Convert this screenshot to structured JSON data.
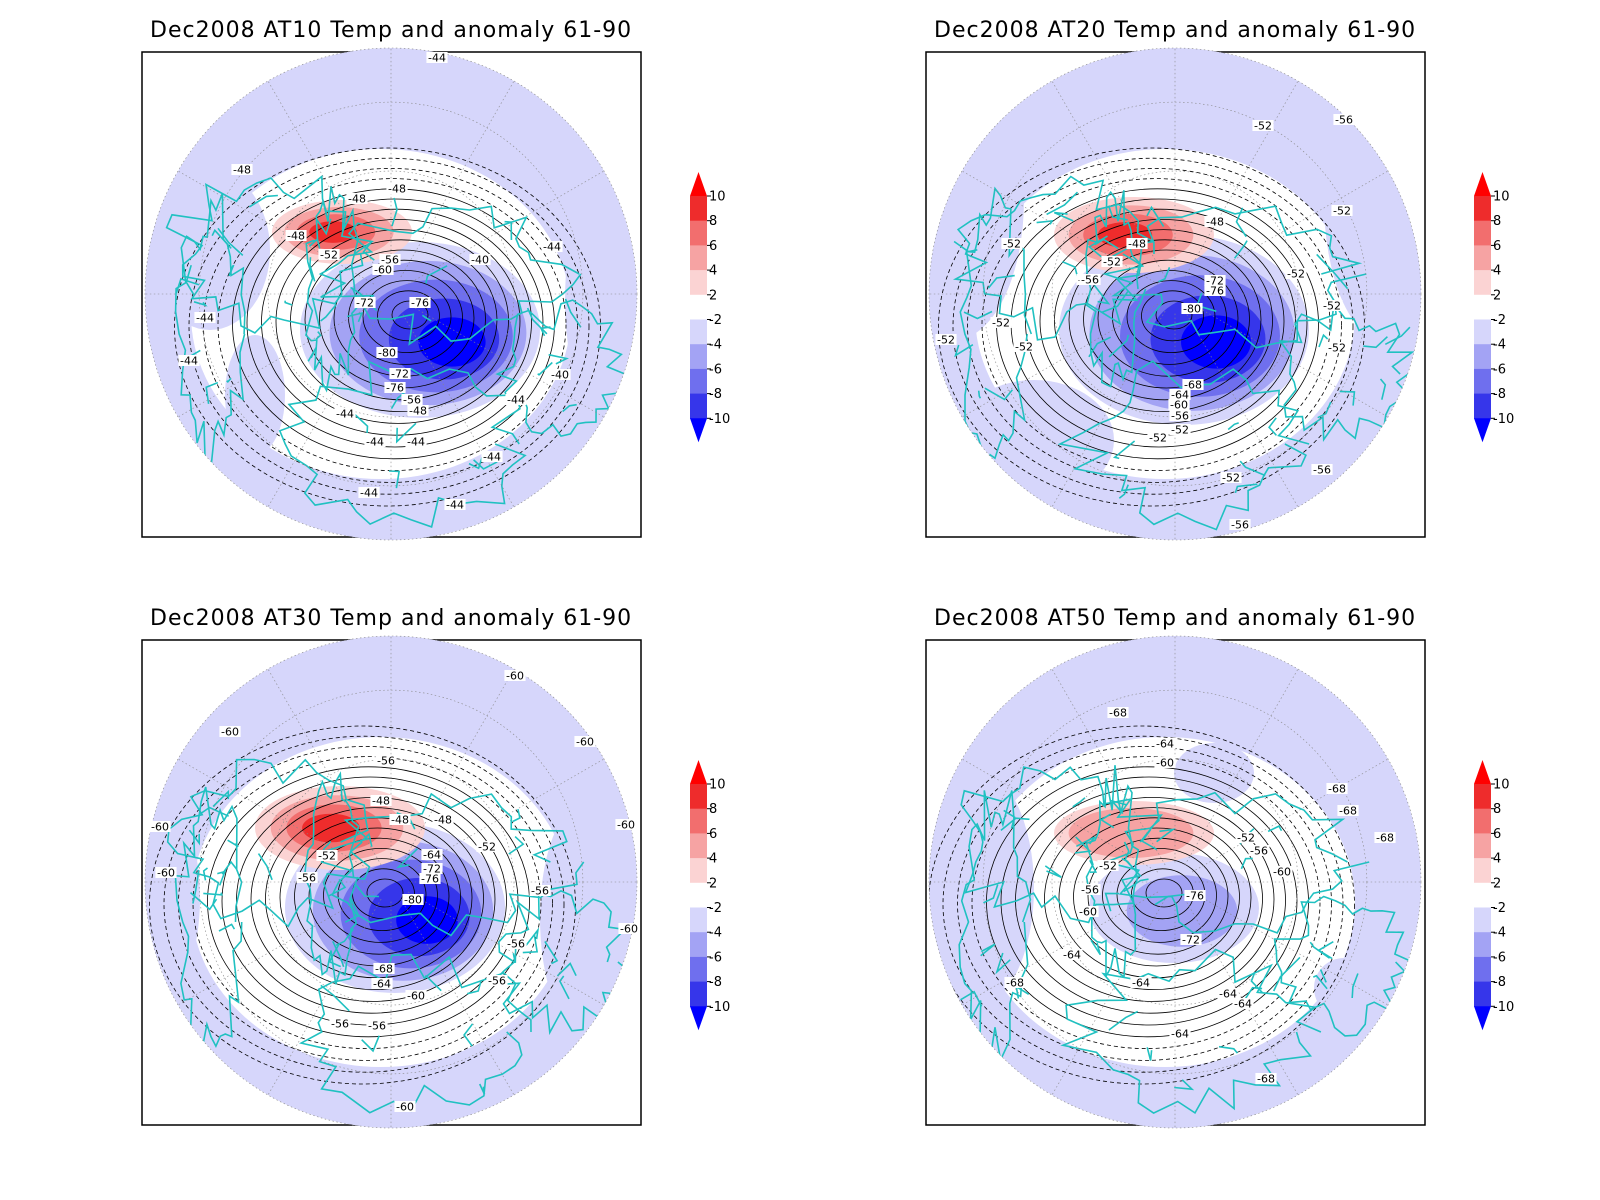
{
  "figure": {
    "colorbar": {
      "ticks": [
        "10",
        "8",
        "6",
        "4",
        "2",
        "-2",
        "-4",
        "-6",
        "-8",
        "-10"
      ],
      "colors": {
        "c_gt10": "#ff0000",
        "c_8_10": "#ee2c2c",
        "c_6_8": "#f26e6e",
        "c_4_6": "#f6a3a3",
        "c_2_4": "#fbd3d3",
        "c_m2_2": "#ffffff",
        "c_m4_m2": "#d6d6fb",
        "c_m6_m4": "#a3a3f4",
        "c_m8_m6": "#6f6fee",
        "c_m10_m8": "#3636ea",
        "c_lt_m10": "#0000ff"
      }
    },
    "coastline_color": "#20c1c1",
    "panels": [
      {
        "title": "Dec2008 AT10 Temp and anomaly 61-90",
        "contour_labels": [
          "-44",
          "-48",
          "-48",
          "-48",
          "-44",
          "-44",
          "-48",
          "-52",
          "-56",
          "-60",
          "-72",
          "-76",
          "-80",
          "-72",
          "-76",
          "-56",
          "-48",
          "-44",
          "-44",
          "-40",
          "-40",
          "-44",
          "-44",
          "-44",
          "-44",
          "-44",
          "-44"
        ],
        "anomaly_field": {
          "warm_max": 8,
          "cold_min": -10
        }
      },
      {
        "title": "Dec2008 AT20 Temp and anomaly 61-90",
        "contour_labels": [
          "-52",
          "-56",
          "-52",
          "-48",
          "-48",
          "-52",
          "-52",
          "-56",
          "-72",
          "-76",
          "-80",
          "-52",
          "-68",
          "-64",
          "-60",
          "-56",
          "-52",
          "-52",
          "-52",
          "-52",
          "-52",
          "-52",
          "-52",
          "-56",
          "-56",
          "-52",
          "-56"
        ],
        "anomaly_field": {
          "warm_max": 8,
          "cold_min": -10
        }
      },
      {
        "title": "Dec2008 AT30 Temp and anomaly 61-90",
        "contour_labels": [
          "-60",
          "-60",
          "-60",
          "-60",
          "-56",
          "-48",
          "-48",
          "-48",
          "-52",
          "-52",
          "-56",
          "-64",
          "-72",
          "-76",
          "-80",
          "-68",
          "-64",
          "-60",
          "-56",
          "-56",
          "-56",
          "-56",
          "-56",
          "-60",
          "-60",
          "-60",
          "-60"
        ],
        "anomaly_field": {
          "warm_max": 8,
          "cold_min": -10
        }
      },
      {
        "title": "Dec2008 AT50 Temp and anomaly 61-90",
        "contour_labels": [
          "-68",
          "-64",
          "-60",
          "-68",
          "-68",
          "-52",
          "-56",
          "-52",
          "-56",
          "-60",
          "-64",
          "-60",
          "-76",
          "-72",
          "-64",
          "-64",
          "-64",
          "-68",
          "-68",
          "-64",
          "-68"
        ],
        "anomaly_field": {
          "warm_max": 6,
          "cold_min": -6
        }
      }
    ]
  }
}
